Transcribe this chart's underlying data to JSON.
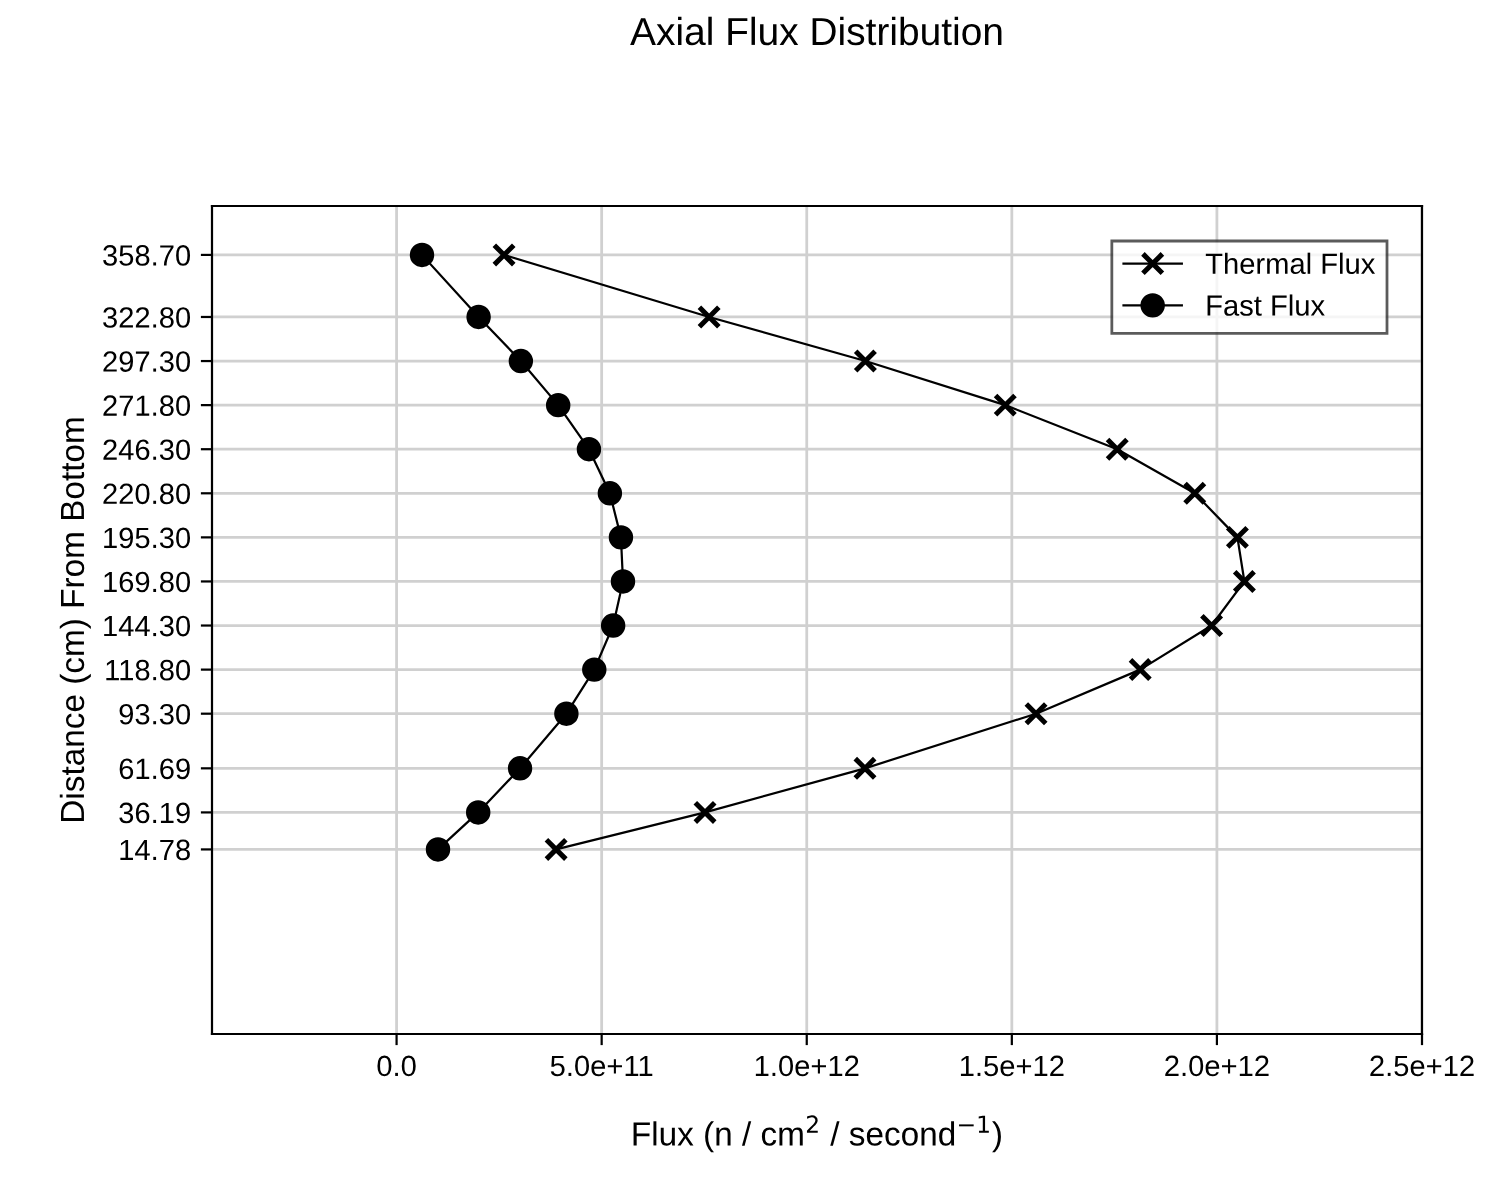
{
  "chart_data": {
    "type": "line",
    "title": "Axial Flux Distribution",
    "xlabel": "Flux (n / cm$^{2}$ / second$^{−1}$)",
    "ylabel": "Distance (cm) From Bottom",
    "xlim": [
      -450000000000.0,
      2500000000000.0
    ],
    "xticks": [
      {
        "value": 0,
        "label": "0.0"
      },
      {
        "value": 500000000000.0,
        "label": "5.0e+11"
      },
      {
        "value": 1000000000000.0,
        "label": "1.0e+12"
      },
      {
        "value": 1500000000000.0,
        "label": "1.5e+12"
      },
      {
        "value": 2000000000000.0,
        "label": "2.0e+12"
      },
      {
        "value": 2500000000000.0,
        "label": "2.5e+12"
      }
    ],
    "ylim": [
      -92,
      387
    ],
    "yticks": [
      {
        "value": 14.78,
        "label": "14.78"
      },
      {
        "value": 36.19,
        "label": "36.19"
      },
      {
        "value": 61.69,
        "label": "61.69"
      },
      {
        "value": 93.3,
        "label": "93.30"
      },
      {
        "value": 118.8,
        "label": "118.80"
      },
      {
        "value": 144.3,
        "label": "144.30"
      },
      {
        "value": 169.8,
        "label": "169.80"
      },
      {
        "value": 195.3,
        "label": "195.30"
      },
      {
        "value": 220.8,
        "label": "220.80"
      },
      {
        "value": 246.3,
        "label": "246.30"
      },
      {
        "value": 271.8,
        "label": "271.80"
      },
      {
        "value": 297.3,
        "label": "297.30"
      },
      {
        "value": 322.8,
        "label": "322.80"
      },
      {
        "value": 358.7,
        "label": "358.70"
      }
    ],
    "grid": true,
    "legend": "top right",
    "series": [
      {
        "name": "Thermal Flux",
        "color": "#000000",
        "marker": "cross",
        "values": [
          358.7,
          322.8,
          297.3,
          271.8,
          246.3,
          220.8,
          195.3,
          169.8,
          144.3,
          118.8,
          93.3,
          61.69,
          36.19,
          14.78
        ],
        "x": [
          262000000000.0,
          762000000000.0,
          1143000000000.0,
          1484000000000.0,
          1757000000000.0,
          1946000000000.0,
          2050000000000.0,
          2067000000000.0,
          1987000000000.0,
          1813000000000.0,
          1559000000000.0,
          1142000000000.0,
          752000000000.0,
          389000000000.0
        ]
      },
      {
        "name": "Fast Flux",
        "color": "#000000",
        "marker": "circle",
        "values": [
          358.7,
          322.8,
          297.3,
          271.8,
          246.3,
          220.8,
          195.3,
          169.8,
          144.3,
          118.8,
          93.3,
          61.69,
          36.19,
          14.78
        ],
        "x": [
          62000000000.0,
          200000000000.0,
          303000000000.0,
          394000000000.0,
          469000000000.0,
          520000000000.0,
          547000000000.0,
          552000000000.0,
          528000000000.0,
          482000000000.0,
          414000000000.0,
          301000000000.0,
          199000000000.0,
          101000000000.0
        ]
      }
    ]
  }
}
